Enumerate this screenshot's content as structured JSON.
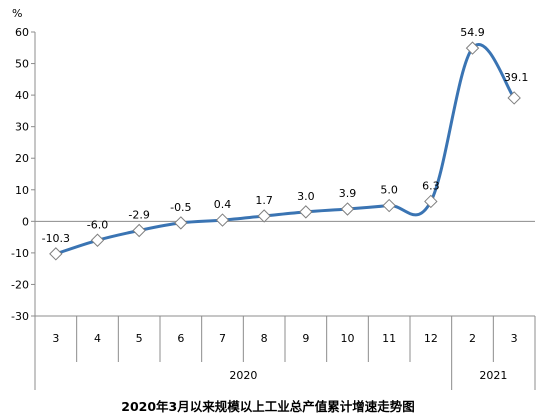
{
  "chart_data": {
    "type": "line",
    "title": "2020年3月以来规模以上工业总产值累计增速走势图",
    "ylabel": "%",
    "xlabel": "",
    "ylim": [
      -30,
      60
    ],
    "yticks": [
      -30,
      -20,
      -10,
      0,
      10,
      20,
      30,
      40,
      50,
      60
    ],
    "categories": [
      "3",
      "4",
      "5",
      "6",
      "7",
      "8",
      "9",
      "10",
      "11",
      "12",
      "2",
      "3"
    ],
    "year_groups": [
      {
        "label": "2020",
        "count": 10
      },
      {
        "label": "2021",
        "count": 2
      }
    ],
    "values": [
      -10.3,
      -6.0,
      -2.9,
      -0.5,
      0.4,
      1.7,
      3.0,
      3.9,
      5.0,
      6.3,
      54.9,
      39.1
    ],
    "value_labels": [
      "-10.3",
      "-6.0",
      "-2.9",
      "-0.5",
      "0.4",
      "1.7",
      "3.0",
      "3.9",
      "5.0",
      "6.3",
      "54.9",
      "39.1"
    ],
    "line_color": "#3A74B3",
    "marker": "diamond",
    "grid": false,
    "legend": "none"
  }
}
